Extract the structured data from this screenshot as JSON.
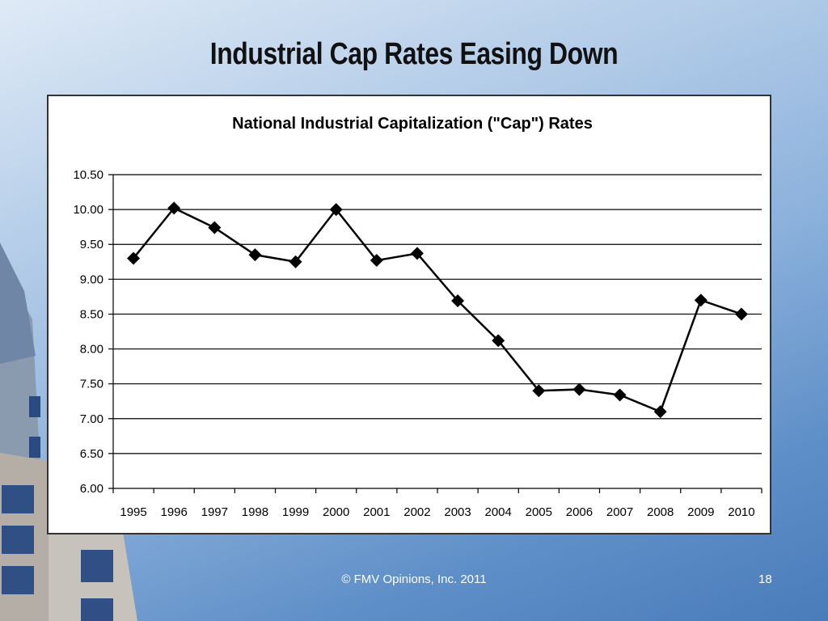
{
  "slide": {
    "title": "Industrial Cap Rates Easing Down",
    "footer": "© FMV Opinions, Inc. 2011",
    "page_number": "18"
  },
  "chart_data": {
    "type": "line",
    "title": "National Industrial Capitalization (\"Cap\") Rates",
    "xlabel": "",
    "ylabel": "",
    "categories": [
      "1995",
      "1996",
      "1997",
      "1998",
      "1999",
      "2000",
      "2001",
      "2002",
      "2003",
      "2004",
      "2005",
      "2006",
      "2007",
      "2008",
      "2009",
      "2010"
    ],
    "series": [
      {
        "values": [
          9.3,
          10.02,
          9.74,
          9.35,
          9.25,
          10.0,
          9.27,
          9.37,
          8.69,
          8.12,
          7.4,
          7.42,
          7.34,
          7.1,
          8.7,
          8.5
        ]
      }
    ],
    "ylim": [
      6.0,
      10.5
    ],
    "yticks": [
      "6.00",
      "6.50",
      "7.00",
      "7.50",
      "8.00",
      "8.50",
      "9.00",
      "9.50",
      "10.00",
      "10.50"
    ],
    "grid": true,
    "marker": "diamond",
    "colors": {
      "line": "#000000",
      "grid": "#000000"
    }
  }
}
